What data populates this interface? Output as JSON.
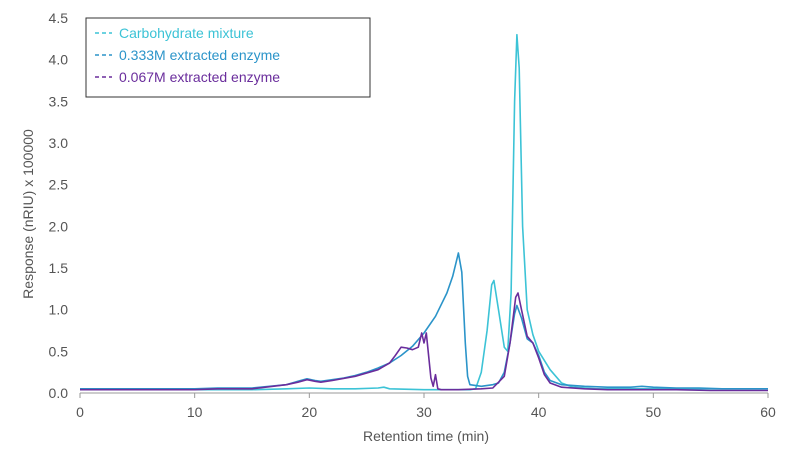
{
  "chart_data": {
    "type": "line",
    "xlabel": "Retention time (min)",
    "ylabel": "Response (nRIU)  x 100000",
    "xlim": [
      0,
      60
    ],
    "ylim": [
      0,
      4.5
    ],
    "x_ticks": [
      0,
      10,
      20,
      30,
      40,
      50,
      60
    ],
    "y_ticks": [
      "0.0",
      "0.5",
      "1.0",
      "1.5",
      "2.0",
      "2.5",
      "3.0",
      "3.5",
      "4.0",
      "4.5"
    ],
    "grid": false,
    "legend": "top-left",
    "series": [
      {
        "name": "Carbohydrate mixture",
        "color": "#3cc3d6",
        "points": [
          [
            0,
            0.04
          ],
          [
            10,
            0.04
          ],
          [
            15,
            0.04
          ],
          [
            18,
            0.05
          ],
          [
            20,
            0.06
          ],
          [
            22,
            0.05
          ],
          [
            24,
            0.05
          ],
          [
            26,
            0.06
          ],
          [
            26.5,
            0.07
          ],
          [
            27,
            0.05
          ],
          [
            30,
            0.04
          ],
          [
            32,
            0.04
          ],
          [
            34,
            0.04
          ],
          [
            34.5,
            0.05
          ],
          [
            35,
            0.25
          ],
          [
            35.5,
            0.75
          ],
          [
            35.9,
            1.3
          ],
          [
            36.1,
            1.35
          ],
          [
            36.5,
            1.0
          ],
          [
            37,
            0.55
          ],
          [
            37.3,
            0.5
          ],
          [
            37.6,
            1.2
          ],
          [
            37.9,
            3.5
          ],
          [
            38.1,
            4.3
          ],
          [
            38.3,
            3.9
          ],
          [
            38.6,
            2.0
          ],
          [
            39,
            1.0
          ],
          [
            39.5,
            0.7
          ],
          [
            40,
            0.5
          ],
          [
            41,
            0.28
          ],
          [
            42,
            0.12
          ],
          [
            43,
            0.07
          ],
          [
            45,
            0.05
          ],
          [
            50,
            0.05
          ],
          [
            55,
            0.05
          ],
          [
            60,
            0.05
          ]
        ]
      },
      {
        "name": "0.333M extracted enzyme",
        "color": "#2b94c9",
        "points": [
          [
            0,
            0.05
          ],
          [
            5,
            0.05
          ],
          [
            10,
            0.05
          ],
          [
            12,
            0.06
          ],
          [
            15,
            0.06
          ],
          [
            18,
            0.1
          ],
          [
            19,
            0.14
          ],
          [
            19.8,
            0.17
          ],
          [
            20.5,
            0.15
          ],
          [
            21,
            0.14
          ],
          [
            22,
            0.16
          ],
          [
            23,
            0.18
          ],
          [
            24,
            0.21
          ],
          [
            25,
            0.25
          ],
          [
            26,
            0.3
          ],
          [
            27,
            0.36
          ],
          [
            28,
            0.45
          ],
          [
            29,
            0.56
          ],
          [
            30,
            0.72
          ],
          [
            31,
            0.92
          ],
          [
            32,
            1.2
          ],
          [
            32.5,
            1.4
          ],
          [
            33,
            1.68
          ],
          [
            33.3,
            1.45
          ],
          [
            33.6,
            0.6
          ],
          [
            33.8,
            0.2
          ],
          [
            34,
            0.1
          ],
          [
            35,
            0.08
          ],
          [
            36,
            0.1
          ],
          [
            36.5,
            0.12
          ],
          [
            37,
            0.25
          ],
          [
            37.5,
            0.6
          ],
          [
            37.9,
            0.95
          ],
          [
            38.1,
            1.05
          ],
          [
            38.5,
            0.9
          ],
          [
            39,
            0.65
          ],
          [
            39.5,
            0.6
          ],
          [
            40,
            0.45
          ],
          [
            40.5,
            0.25
          ],
          [
            41,
            0.15
          ],
          [
            42,
            0.1
          ],
          [
            44,
            0.08
          ],
          [
            46,
            0.07
          ],
          [
            48,
            0.07
          ],
          [
            49,
            0.08
          ],
          [
            50,
            0.07
          ],
          [
            52,
            0.06
          ],
          [
            54,
            0.06
          ],
          [
            56,
            0.05
          ],
          [
            58,
            0.05
          ],
          [
            60,
            0.05
          ]
        ]
      },
      {
        "name": "0.067M extracted enzyme",
        "color": "#6a2d9c",
        "points": [
          [
            0,
            0.04
          ],
          [
            10,
            0.04
          ],
          [
            12,
            0.05
          ],
          [
            15,
            0.05
          ],
          [
            18,
            0.1
          ],
          [
            19,
            0.13
          ],
          [
            19.8,
            0.16
          ],
          [
            20.5,
            0.14
          ],
          [
            21,
            0.13
          ],
          [
            22,
            0.15
          ],
          [
            24,
            0.2
          ],
          [
            26,
            0.28
          ],
          [
            27,
            0.36
          ],
          [
            27.5,
            0.45
          ],
          [
            28,
            0.55
          ],
          [
            28.5,
            0.54
          ],
          [
            29,
            0.52
          ],
          [
            29.5,
            0.55
          ],
          [
            29.8,
            0.72
          ],
          [
            30,
            0.6
          ],
          [
            30.2,
            0.72
          ],
          [
            30.4,
            0.45
          ],
          [
            30.6,
            0.18
          ],
          [
            30.8,
            0.08
          ],
          [
            31,
            0.22
          ],
          [
            31.2,
            0.05
          ],
          [
            31.5,
            0.04
          ],
          [
            33,
            0.04
          ],
          [
            35,
            0.05
          ],
          [
            36,
            0.06
          ],
          [
            37,
            0.2
          ],
          [
            37.5,
            0.6
          ],
          [
            38,
            1.15
          ],
          [
            38.2,
            1.2
          ],
          [
            38.5,
            1.0
          ],
          [
            39,
            0.68
          ],
          [
            39.5,
            0.6
          ],
          [
            40,
            0.42
          ],
          [
            40.5,
            0.22
          ],
          [
            41,
            0.12
          ],
          [
            42,
            0.07
          ],
          [
            44,
            0.05
          ],
          [
            46,
            0.04
          ],
          [
            48,
            0.04
          ],
          [
            50,
            0.04
          ],
          [
            52,
            0.04
          ],
          [
            55,
            0.03
          ],
          [
            58,
            0.03
          ],
          [
            60,
            0.03
          ]
        ]
      }
    ]
  }
}
